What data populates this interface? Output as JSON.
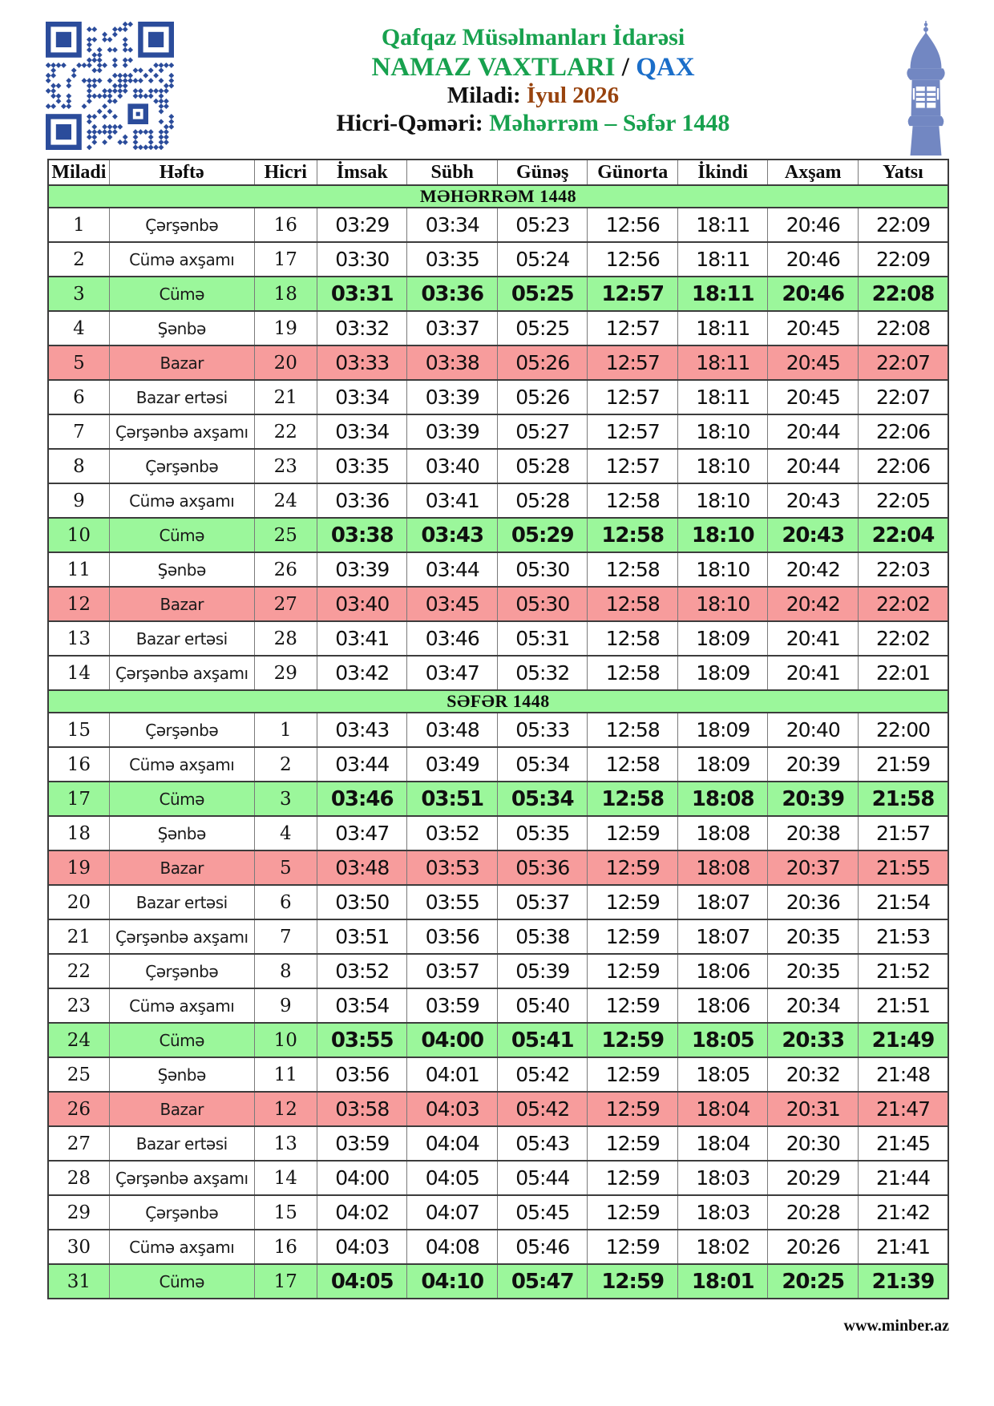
{
  "header": {
    "organization": "Qafqaz Müsəlmanları İdarəsi",
    "title": "NAMAZ VAXTLARI",
    "separator": " / ",
    "city": "QAX",
    "miladi_label": "Miladi: ",
    "miladi_value": "İyul 2026",
    "hicri_label": "Hicri-Qəməri: ",
    "hicri_value": "Məhərrəm – Səfər 1448"
  },
  "colors": {
    "brand_green": "#17a14e",
    "city_blue": "#1b6ec9",
    "month_brown": "#98430e",
    "friday_row": "#9bf79b",
    "sunday_row": "#f79c9c",
    "qr_blue": "#2b4c9b",
    "minaret_blue": "#7287c2"
  },
  "icons": {
    "qr": "qr-code",
    "minaret": "mosque-minaret"
  },
  "table": {
    "columns": [
      "Miladi",
      "Həftə",
      "Hicri",
      "İmsak",
      "Sübh",
      "Günəş",
      "Günorta",
      "İkindi",
      "Axşam",
      "Yatsı"
    ],
    "sections": [
      {
        "title": "MƏHƏRRƏM 1448",
        "rows": [
          {
            "miladi": "1",
            "weekday": "Çərşənbə",
            "hicri": "16",
            "times": [
              "03:29",
              "03:34",
              "05:23",
              "12:56",
              "18:11",
              "20:46",
              "22:09"
            ],
            "highlight": "none"
          },
          {
            "miladi": "2",
            "weekday": "Cümə axşamı",
            "hicri": "17",
            "times": [
              "03:30",
              "03:35",
              "05:24",
              "12:56",
              "18:11",
              "20:46",
              "22:09"
            ],
            "highlight": "none"
          },
          {
            "miladi": "3",
            "weekday": "Cümə",
            "hicri": "18",
            "times": [
              "03:31",
              "03:36",
              "05:25",
              "12:57",
              "18:11",
              "20:46",
              "22:08"
            ],
            "highlight": "friday"
          },
          {
            "miladi": "4",
            "weekday": "Şənbə",
            "hicri": "19",
            "times": [
              "03:32",
              "03:37",
              "05:25",
              "12:57",
              "18:11",
              "20:45",
              "22:08"
            ],
            "highlight": "none"
          },
          {
            "miladi": "5",
            "weekday": "Bazar",
            "hicri": "20",
            "times": [
              "03:33",
              "03:38",
              "05:26",
              "12:57",
              "18:11",
              "20:45",
              "22:07"
            ],
            "highlight": "sunday"
          },
          {
            "miladi": "6",
            "weekday": "Bazar ertəsi",
            "hicri": "21",
            "times": [
              "03:34",
              "03:39",
              "05:26",
              "12:57",
              "18:11",
              "20:45",
              "22:07"
            ],
            "highlight": "none"
          },
          {
            "miladi": "7",
            "weekday": "Çərşənbə axşamı",
            "hicri": "22",
            "times": [
              "03:34",
              "03:39",
              "05:27",
              "12:57",
              "18:10",
              "20:44",
              "22:06"
            ],
            "highlight": "none"
          },
          {
            "miladi": "8",
            "weekday": "Çərşənbə",
            "hicri": "23",
            "times": [
              "03:35",
              "03:40",
              "05:28",
              "12:57",
              "18:10",
              "20:44",
              "22:06"
            ],
            "highlight": "none"
          },
          {
            "miladi": "9",
            "weekday": "Cümə axşamı",
            "hicri": "24",
            "times": [
              "03:36",
              "03:41",
              "05:28",
              "12:58",
              "18:10",
              "20:43",
              "22:05"
            ],
            "highlight": "none"
          },
          {
            "miladi": "10",
            "weekday": "Cümə",
            "hicri": "25",
            "times": [
              "03:38",
              "03:43",
              "05:29",
              "12:58",
              "18:10",
              "20:43",
              "22:04"
            ],
            "highlight": "friday"
          },
          {
            "miladi": "11",
            "weekday": "Şənbə",
            "hicri": "26",
            "times": [
              "03:39",
              "03:44",
              "05:30",
              "12:58",
              "18:10",
              "20:42",
              "22:03"
            ],
            "highlight": "none"
          },
          {
            "miladi": "12",
            "weekday": "Bazar",
            "hicri": "27",
            "times": [
              "03:40",
              "03:45",
              "05:30",
              "12:58",
              "18:10",
              "20:42",
              "22:02"
            ],
            "highlight": "sunday"
          },
          {
            "miladi": "13",
            "weekday": "Bazar ertəsi",
            "hicri": "28",
            "times": [
              "03:41",
              "03:46",
              "05:31",
              "12:58",
              "18:09",
              "20:41",
              "22:02"
            ],
            "highlight": "none"
          },
          {
            "miladi": "14",
            "weekday": "Çərşənbə axşamı",
            "hicri": "29",
            "times": [
              "03:42",
              "03:47",
              "05:32",
              "12:58",
              "18:09",
              "20:41",
              "22:01"
            ],
            "highlight": "none"
          }
        ]
      },
      {
        "title": "SƏFƏR 1448",
        "rows": [
          {
            "miladi": "15",
            "weekday": "Çərşənbə",
            "hicri": "1",
            "times": [
              "03:43",
              "03:48",
              "05:33",
              "12:58",
              "18:09",
              "20:40",
              "22:00"
            ],
            "highlight": "none"
          },
          {
            "miladi": "16",
            "weekday": "Cümə axşamı",
            "hicri": "2",
            "times": [
              "03:44",
              "03:49",
              "05:34",
              "12:58",
              "18:09",
              "20:39",
              "21:59"
            ],
            "highlight": "none"
          },
          {
            "miladi": "17",
            "weekday": "Cümə",
            "hicri": "3",
            "times": [
              "03:46",
              "03:51",
              "05:34",
              "12:58",
              "18:08",
              "20:39",
              "21:58"
            ],
            "highlight": "friday"
          },
          {
            "miladi": "18",
            "weekday": "Şənbə",
            "hicri": "4",
            "times": [
              "03:47",
              "03:52",
              "05:35",
              "12:59",
              "18:08",
              "20:38",
              "21:57"
            ],
            "highlight": "none"
          },
          {
            "miladi": "19",
            "weekday": "Bazar",
            "hicri": "5",
            "times": [
              "03:48",
              "03:53",
              "05:36",
              "12:59",
              "18:08",
              "20:37",
              "21:55"
            ],
            "highlight": "sunday"
          },
          {
            "miladi": "20",
            "weekday": "Bazar ertəsi",
            "hicri": "6",
            "times": [
              "03:50",
              "03:55",
              "05:37",
              "12:59",
              "18:07",
              "20:36",
              "21:54"
            ],
            "highlight": "none"
          },
          {
            "miladi": "21",
            "weekday": "Çərşənbə axşamı",
            "hicri": "7",
            "times": [
              "03:51",
              "03:56",
              "05:38",
              "12:59",
              "18:07",
              "20:35",
              "21:53"
            ],
            "highlight": "none"
          },
          {
            "miladi": "22",
            "weekday": "Çərşənbə",
            "hicri": "8",
            "times": [
              "03:52",
              "03:57",
              "05:39",
              "12:59",
              "18:06",
              "20:35",
              "21:52"
            ],
            "highlight": "none"
          },
          {
            "miladi": "23",
            "weekday": "Cümə axşamı",
            "hicri": "9",
            "times": [
              "03:54",
              "03:59",
              "05:40",
              "12:59",
              "18:06",
              "20:34",
              "21:51"
            ],
            "highlight": "none"
          },
          {
            "miladi": "24",
            "weekday": "Cümə",
            "hicri": "10",
            "times": [
              "03:55",
              "04:00",
              "05:41",
              "12:59",
              "18:05",
              "20:33",
              "21:49"
            ],
            "highlight": "friday"
          },
          {
            "miladi": "25",
            "weekday": "Şənbə",
            "hicri": "11",
            "times": [
              "03:56",
              "04:01",
              "05:42",
              "12:59",
              "18:05",
              "20:32",
              "21:48"
            ],
            "highlight": "none"
          },
          {
            "miladi": "26",
            "weekday": "Bazar",
            "hicri": "12",
            "times": [
              "03:58",
              "04:03",
              "05:42",
              "12:59",
              "18:04",
              "20:31",
              "21:47"
            ],
            "highlight": "sunday"
          },
          {
            "miladi": "27",
            "weekday": "Bazar ertəsi",
            "hicri": "13",
            "times": [
              "03:59",
              "04:04",
              "05:43",
              "12:59",
              "18:04",
              "20:30",
              "21:45"
            ],
            "highlight": "none"
          },
          {
            "miladi": "28",
            "weekday": "Çərşənbə axşamı",
            "hicri": "14",
            "times": [
              "04:00",
              "04:05",
              "05:44",
              "12:59",
              "18:03",
              "20:29",
              "21:44"
            ],
            "highlight": "none"
          },
          {
            "miladi": "29",
            "weekday": "Çərşənbə",
            "hicri": "15",
            "times": [
              "04:02",
              "04:07",
              "05:45",
              "12:59",
              "18:03",
              "20:28",
              "21:42"
            ],
            "highlight": "none"
          },
          {
            "miladi": "30",
            "weekday": "Cümə axşamı",
            "hicri": "16",
            "times": [
              "04:03",
              "04:08",
              "05:46",
              "12:59",
              "18:02",
              "20:26",
              "21:41"
            ],
            "highlight": "none"
          },
          {
            "miladi": "31",
            "weekday": "Cümə",
            "hicri": "17",
            "times": [
              "04:05",
              "04:10",
              "05:47",
              "12:59",
              "18:01",
              "20:25",
              "21:39"
            ],
            "highlight": "friday"
          }
        ]
      }
    ]
  },
  "footer": {
    "website": "www.minber.az"
  }
}
